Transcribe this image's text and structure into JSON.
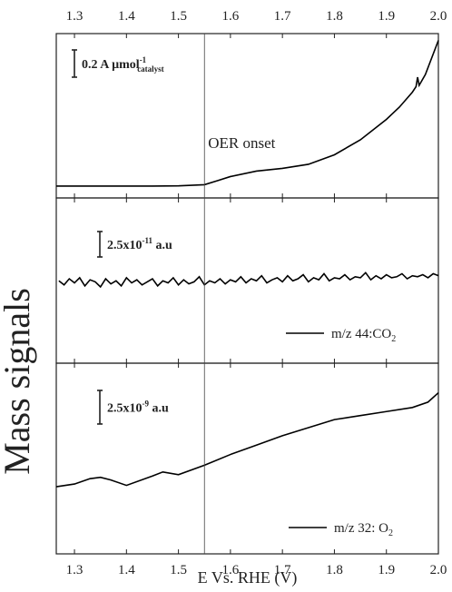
{
  "chart_data": [
    {
      "type": "line",
      "xlim": [
        1.265,
        2.0
      ],
      "xticks": [
        1.3,
        1.4,
        1.5,
        1.6,
        1.7,
        1.8,
        1.9,
        {
          "value": 2.0,
          "label": "2.0"
        }
      ],
      "ylim": [
        -0.087,
        1.12
      ],
      "x": [
        1.265,
        1.3,
        1.35,
        1.4,
        1.45,
        1.5,
        1.55,
        1.575,
        1.6,
        1.65,
        1.7,
        1.75,
        1.8,
        1.85,
        1.9,
        1.925,
        1.95,
        1.957,
        1.96,
        1.963,
        1.975,
        2.0
      ],
      "series": [
        {
          "color": "#000000",
          "values": [
            0,
            0,
            0,
            0,
            0,
            0.002,
            0.01,
            0.04,
            0.07,
            0.11,
            0.13,
            0.16,
            0.23,
            0.34,
            0.49,
            0.58,
            0.69,
            0.73,
            0.8,
            0.74,
            0.82,
            1.07
          ]
        }
      ],
      "scale_bar": {
        "value": 0.2,
        "label": [
          "0.2 A µmol",
          "-1",
          "catalyst"
        ]
      }
    },
    {
      "type": "line",
      "xlim": [
        1.265,
        2.0
      ],
      "xticks": [
        1.3,
        1.4,
        1.5,
        1.6,
        1.7,
        1.8,
        1.9,
        2.0
      ],
      "ylim": [
        0,
        16.25
      ],
      "x": [
        1.27,
        1.28,
        1.29,
        1.3,
        1.31,
        1.32,
        1.33,
        1.34,
        1.35,
        1.36,
        1.37,
        1.38,
        1.39,
        1.4,
        1.41,
        1.42,
        1.43,
        1.44,
        1.45,
        1.46,
        1.47,
        1.48,
        1.49,
        1.5,
        1.51,
        1.52,
        1.53,
        1.54,
        1.55,
        1.56,
        1.57,
        1.58,
        1.59,
        1.6,
        1.61,
        1.62,
        1.63,
        1.64,
        1.65,
        1.66,
        1.67,
        1.68,
        1.69,
        1.7,
        1.71,
        1.72,
        1.73,
        1.74,
        1.75,
        1.76,
        1.77,
        1.78,
        1.79,
        1.8,
        1.81,
        1.82,
        1.83,
        1.84,
        1.85,
        1.86,
        1.87,
        1.88,
        1.89,
        1.9,
        1.91,
        1.92,
        1.93,
        1.94,
        1.95,
        1.96,
        1.97,
        1.98,
        1.99,
        2.0
      ],
      "series": [
        {
          "name": [
            "m/z 44:CO",
            "2"
          ],
          "color": "#000000",
          "values": [
            8.1,
            7.7,
            8.3,
            7.9,
            8.4,
            7.6,
            8.2,
            8.0,
            7.5,
            8.3,
            7.8,
            8.1,
            7.6,
            8.4,
            7.9,
            8.2,
            7.7,
            8.0,
            8.3,
            7.6,
            8.1,
            7.9,
            8.4,
            7.7,
            8.2,
            7.8,
            8.0,
            8.5,
            7.7,
            8.1,
            7.9,
            8.3,
            7.8,
            8.2,
            8.0,
            8.5,
            7.9,
            8.3,
            8.1,
            8.6,
            7.9,
            8.2,
            8.4,
            8.0,
            8.6,
            8.1,
            8.3,
            8.7,
            8.0,
            8.4,
            8.2,
            8.8,
            8.1,
            8.4,
            8.3,
            8.7,
            8.2,
            8.5,
            8.4,
            8.9,
            8.2,
            8.6,
            8.3,
            8.7,
            8.4,
            8.5,
            8.8,
            8.3,
            8.6,
            8.5,
            8.7,
            8.4,
            8.8,
            8.6
          ]
        }
      ],
      "scale_bar": {
        "value": 2.5,
        "label": [
          "2.5x10",
          "-11",
          " a.u"
        ]
      }
    },
    {
      "type": "line",
      "xlim": [
        1.265,
        2.0
      ],
      "xticks": [
        1.3,
        1.4,
        1.5,
        1.6,
        1.7,
        1.8,
        1.9,
        {
          "value": 2.0,
          "label": "2.0"
        }
      ],
      "xlabel": "E Vs. RHE (V)",
      "ylim": [
        0,
        14.2
      ],
      "x": [
        1.265,
        1.3,
        1.33,
        1.35,
        1.37,
        1.4,
        1.45,
        1.47,
        1.5,
        1.55,
        1.6,
        1.65,
        1.7,
        1.75,
        1.8,
        1.85,
        1.9,
        1.95,
        1.98,
        2.0
      ],
      "series": [
        {
          "name": [
            "m/z 32: O",
            "2"
          ],
          "color": "#000000",
          "values": [
            5.0,
            5.2,
            5.6,
            5.7,
            5.5,
            5.1,
            5.8,
            6.1,
            5.9,
            6.6,
            7.4,
            8.1,
            8.8,
            9.4,
            10.0,
            10.3,
            10.6,
            10.9,
            11.3,
            12.0
          ]
        }
      ],
      "scale_bar": {
        "value": 2.5,
        "label": [
          "2.5x10",
          "-9",
          " a.u"
        ]
      }
    }
  ],
  "ylabel": "Mass signals",
  "onset": {
    "x": 1.55,
    "label": "OER onset"
  }
}
